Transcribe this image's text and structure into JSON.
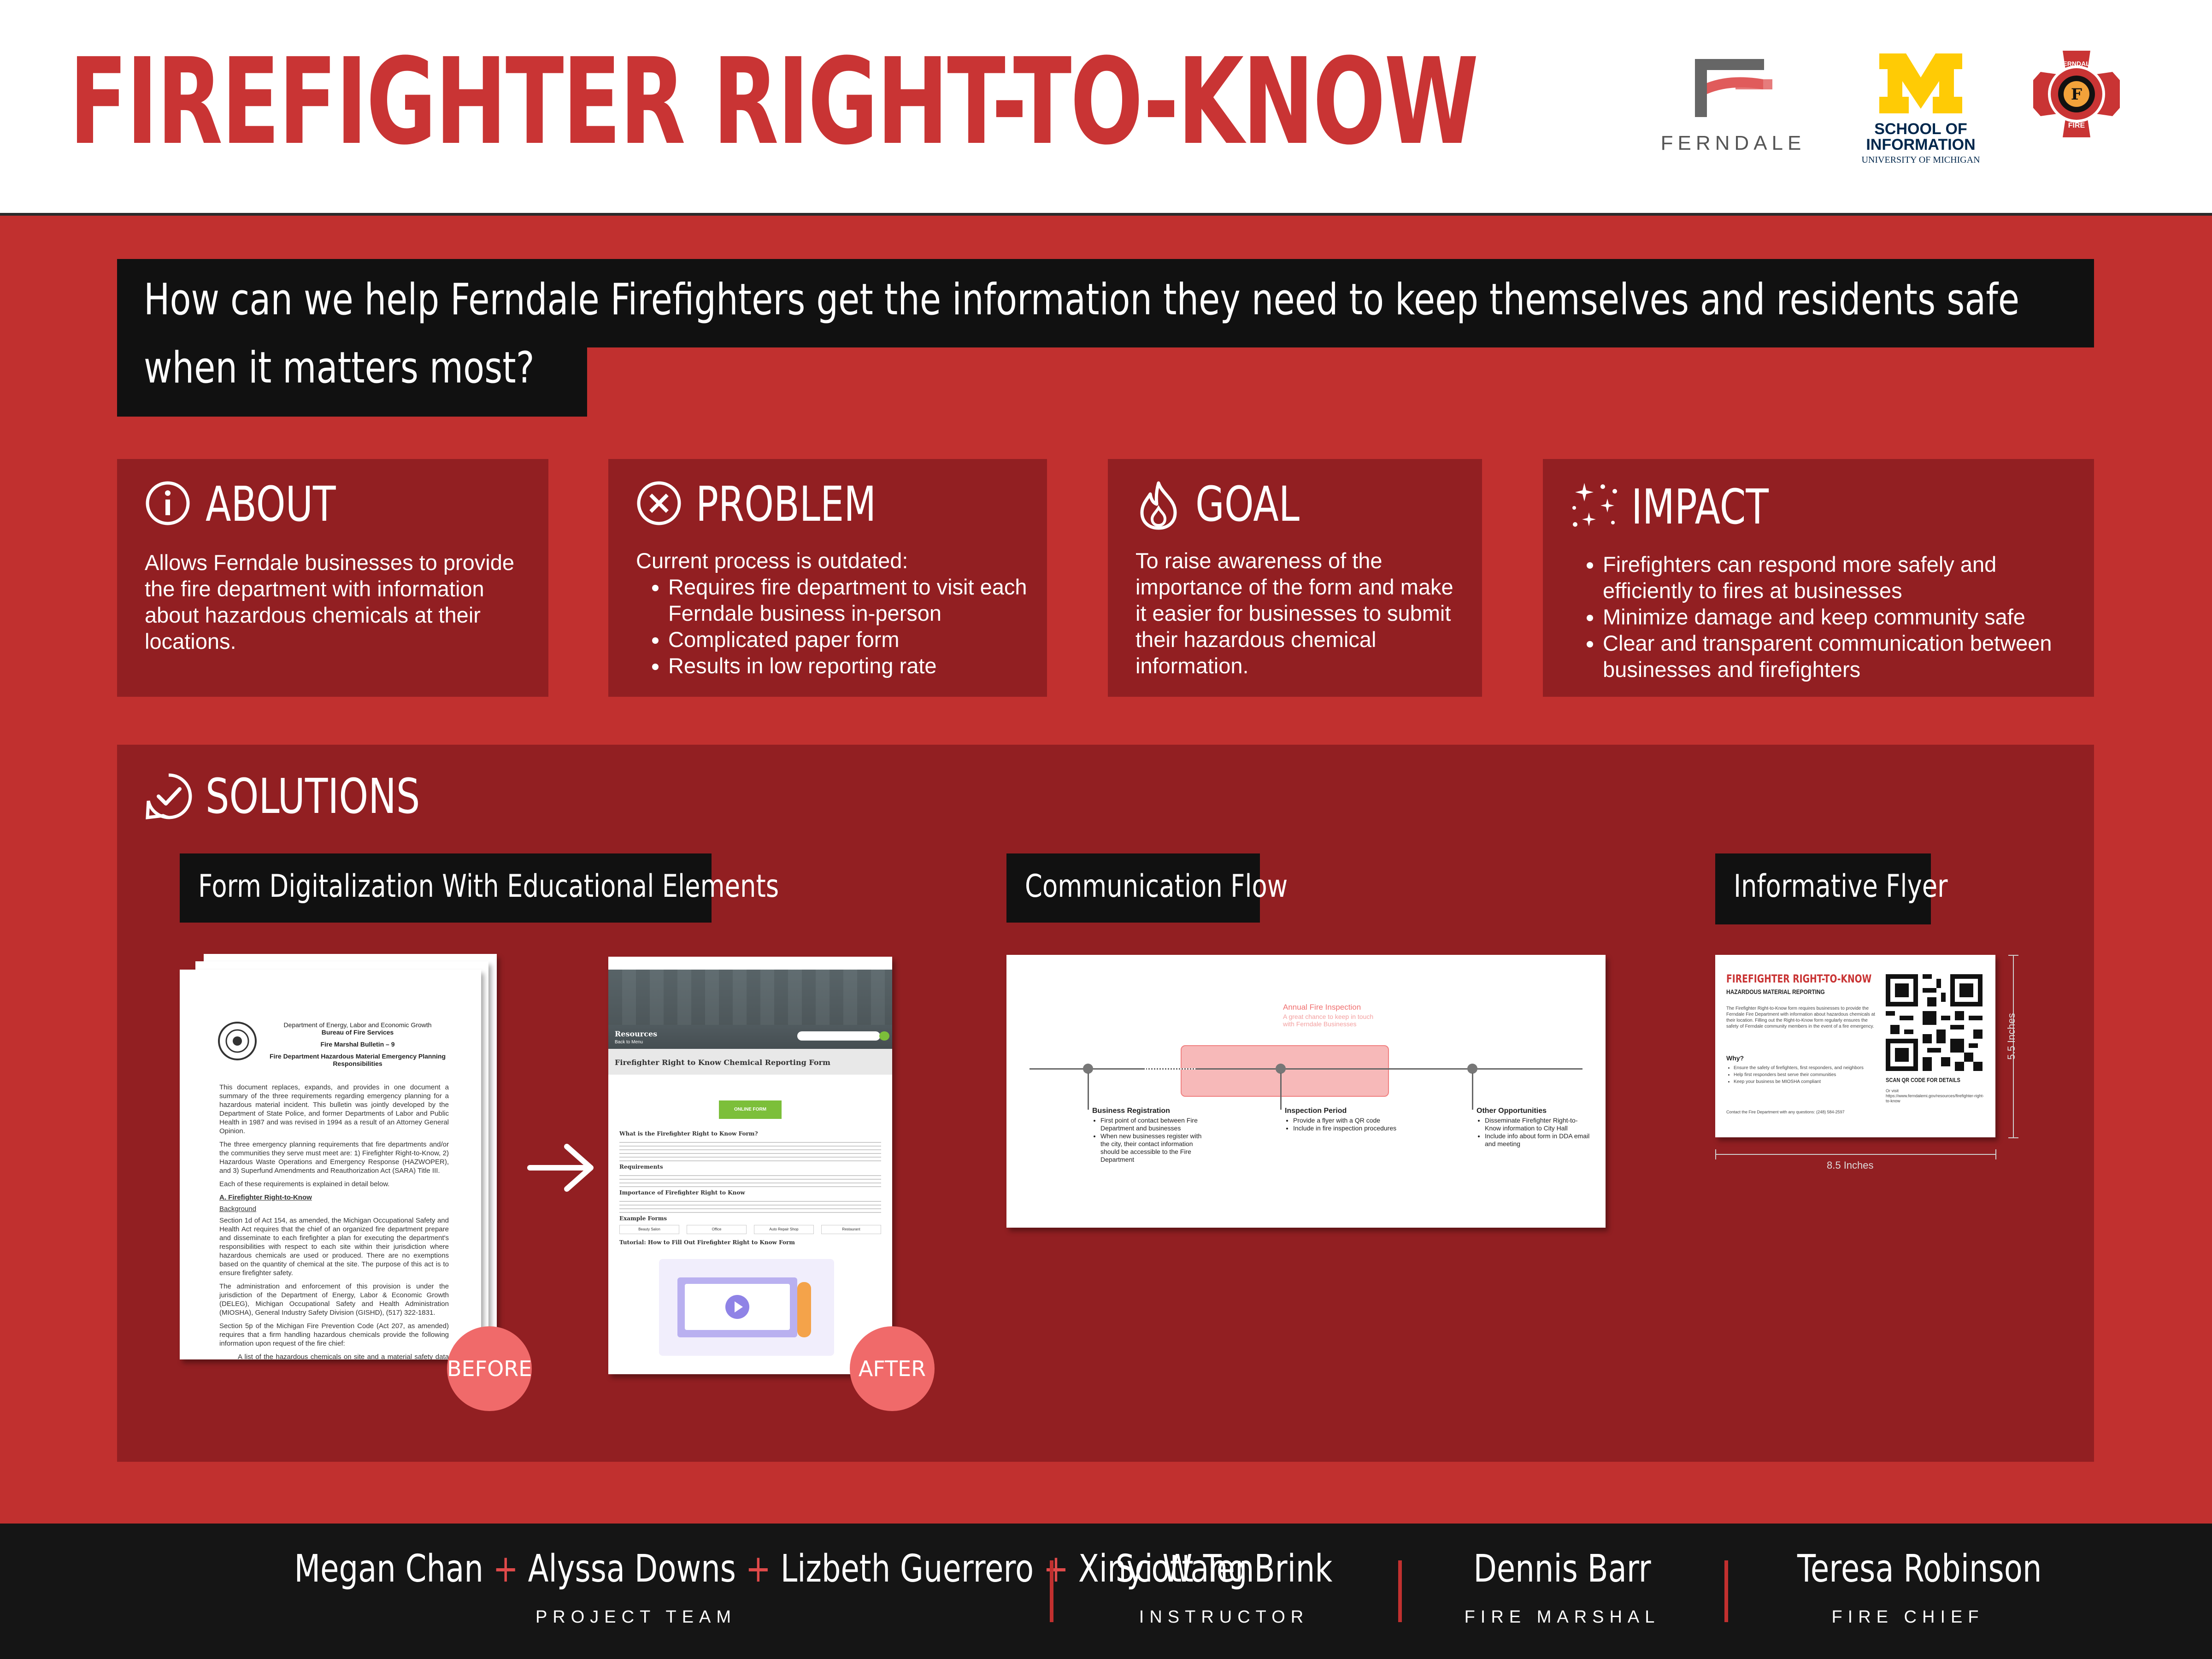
{
  "header": {
    "title": "FIREFIGHTER RIGHT-TO-KNOW",
    "logos": {
      "ferndale": "FERNDALE",
      "umich_line1": "SCHOOL OF",
      "umich_line2": "INFORMATION",
      "umich_line3": "UNIVERSITY OF MICHIGAN",
      "fire_top": "FERNDALE",
      "fire_bottom": "FIRE"
    }
  },
  "question": {
    "line1": "How can we help Ferndale Firefighters get the information they need to keep themselves and residents safe",
    "line2": "when it matters most?"
  },
  "cards": {
    "about": {
      "title": "ABOUT",
      "icon": "info-icon",
      "body": "Allows Ferndale businesses to provide the fire department with information about hazardous chemicals at their locations."
    },
    "problem": {
      "title": "PROBLEM",
      "icon": "x-circle-icon",
      "intro": "Current process is outdated:",
      "bullets": [
        "Requires fire department to visit each Ferndale business in-person",
        "Complicated paper form",
        "Results in low reporting rate"
      ]
    },
    "goal": {
      "title": "GOAL",
      "icon": "flame-icon",
      "body": "To raise awareness of the importance of the form and make it easier for businesses to submit their hazardous chemical information."
    },
    "impact": {
      "title": "IMPACT",
      "icon": "sparkles-icon",
      "bullets": [
        "Firefighters can respond more safely and efficiently to fires at businesses",
        "Minimize damage and keep community safe",
        "Clear and transparent communication between businesses and firefighters"
      ]
    }
  },
  "solutions": {
    "title": "SOLUTIONS",
    "icon": "check-bubble-icon",
    "tags": {
      "form": "Form Digitalization With Educational Elements",
      "flow": "Communication Flow",
      "flyer": "Informative Flyer"
    },
    "before_label": "BEFORE",
    "after_label": "AFTER",
    "before_doc": {
      "header1": "Department of Energy, Labor and Economic Growth",
      "header2": "Bureau of Fire Services",
      "bulletin": "Fire Marshal Bulletin – 9",
      "title": "Fire Department Hazardous Material Emergency Planning Responsibilities",
      "para1": "This document replaces, expands, and provides in one document a summary of the three requirements regarding emergency planning for a hazardous material incident. This bulletin was jointly developed by the Department of State Police, and former Departments of Labor and Public Health in 1987 and was revised in 1994 as a result of an Attorney General Opinion.",
      "para2": "The three emergency planning requirements that fire departments and/or the communities they serve must meet are: 1) Firefighter Right-to-Know, 2) Hazardous Waste Operations and Emergency Response (HAZWOPER), and 3) Superfund Amendments and Reauthorization Act (SARA) Title III.",
      "para3": "Each of these requirements is explained in detail below.",
      "section": "A. Firefighter Right-to-Know",
      "sub": "Background",
      "para4": "Section 1d of Act 154, as amended, the Michigan Occupational Safety and Health Act requires that the chief of an organized fire department prepare and disseminate to each firefighter a plan for executing the department's responsibilities with respect to each site within their jurisdiction where hazardous chemicals are used or produced. There are no exemptions based on the quantity of chemical at the site. The purpose of this act is to ensure firefighter safety.",
      "para5": "The administration and enforcement of this provision is under the jurisdiction of the Department of Energy, Labor & Economic Growth (DELEG), Michigan Occupational Safety and Health Administration (MIOSHA), General Industry Safety Division (GISHD), (517) 322-1831.",
      "para6": "Section 5p of the Michigan Fire Prevention Code (Act 207, as amended) requires that a firm handling hazardous chemicals provide the following information upon request of the fire chief:",
      "bullet": "A list of the hazardous chemicals on site and a material safety data sheet (MSDS) for each chemical on the list."
    },
    "after_page": {
      "hero_title": "Resources",
      "hero_sub": "Back to Menu",
      "form_title": "Firefighter Right to Know Chemical Reporting Form",
      "button": "ONLINE FORM",
      "q1": "What is the Firefighter Right to Know Form?",
      "q2": "Requirements",
      "q3": "Importance of Firefighter Right to Know",
      "q4": "Example Forms",
      "ex1": "Beauty Salon",
      "ex2": "Office",
      "ex3": "Auto Repair Shop",
      "ex4": "Restaurant",
      "q5": "Tutorial: How to Fill Out Firefighter Right to Know Form"
    },
    "flow": {
      "annual_title": "Annual Fire Inspection",
      "annual_sub": "A great chance to keep in touch with Ferndale Businesses",
      "step1_title": "Business Registration",
      "step1_items": [
        "First point of contact between Fire Department and businesses",
        "When new businesses register with the city, their contact information should be accessible to the Fire Department"
      ],
      "step2_title": "Inspection Period",
      "step2_items": [
        "Provide a flyer with a QR code",
        "Include in fire inspection procedures"
      ],
      "step3_title": "Other Opportunities",
      "step3_items": [
        "Disseminate Firefighter Right-to-Know information to City Hall",
        "Include info about form in DDA email and meeting"
      ]
    },
    "flyer": {
      "title": "FIREFIGHTER RIGHT-TO-KNOW",
      "subtitle": "HAZARDOUS MATERIAL REPORTING",
      "body": "The Firefighter Right-to-Know form requires businesses to provide the Ferndale Fire Department with information about hazardous chemicals at their location. Filling out the Right-to-Know form regularly ensures the safety of Ferndale community members in the event of a fire emergency.",
      "why": "Why?",
      "why_items": [
        "Ensure the safety of firefighters, first responders, and neighbors",
        "Help first responders best serve their communities",
        "Keep your business be MIOSHA compliant"
      ],
      "scan": "SCAN QR CODE FOR DETAILS",
      "url": "Or visit https://www.ferndalemi.gov/resources/firefighter-right-to-know",
      "contact": "Contact the Fire Department with any questions: (248) 584-2597",
      "width_label": "8.5 Inches",
      "height_label": "5.5 Inches"
    }
  },
  "footer": {
    "team_names": [
      "Megan Chan",
      "Alyssa Downs",
      "Lizbeth Guerrero",
      "Xinyi Wang"
    ],
    "team_role": "PROJECT TEAM",
    "instructor_name": "Scott TenBrink",
    "instructor_role": "INSTRUCTOR",
    "marshal_name": "Dennis Barr",
    "marshal_role": "FIRE MARSHAL",
    "chief_name": "Teresa Robinson",
    "chief_role": "FIRE CHIEF",
    "plus": "+"
  },
  "colors": {
    "brand_red": "#c1302f",
    "dark_red": "#921f22",
    "title_red": "#c93434",
    "badge_pink": "#f06a6a",
    "michigan_yellow": "#ffcb05",
    "michigan_blue": "#00274c"
  }
}
